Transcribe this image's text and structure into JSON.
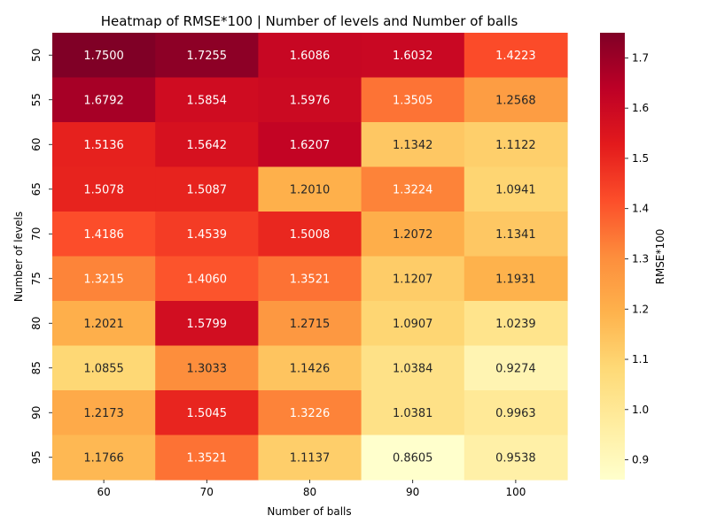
{
  "chart_data": {
    "type": "heatmap",
    "title": "Heatmap of RMSE*100 | Number of levels and Number of balls",
    "xlabel": "Number of balls",
    "ylabel": "Number of levels",
    "x_categories": [
      "60",
      "70",
      "80",
      "90",
      "100"
    ],
    "y_categories": [
      "50",
      "55",
      "60",
      "65",
      "70",
      "75",
      "80",
      "85",
      "90",
      "95"
    ],
    "values": [
      [
        1.75,
        1.7255,
        1.6086,
        1.6032,
        1.4223
      ],
      [
        1.6792,
        1.5854,
        1.5976,
        1.3505,
        1.2568
      ],
      [
        1.5136,
        1.5642,
        1.6207,
        1.1342,
        1.1122
      ],
      [
        1.5078,
        1.5087,
        1.201,
        1.3224,
        1.0941
      ],
      [
        1.4186,
        1.4539,
        1.5008,
        1.2072,
        1.1341
      ],
      [
        1.3215,
        1.406,
        1.3521,
        1.1207,
        1.1931
      ],
      [
        1.2021,
        1.5799,
        1.2715,
        1.0907,
        1.0239
      ],
      [
        1.0855,
        1.3033,
        1.1426,
        1.0384,
        0.9274
      ],
      [
        1.2173,
        1.5045,
        1.3226,
        1.0381,
        0.9963
      ],
      [
        1.1766,
        1.3521,
        1.1137,
        0.8605,
        0.9538
      ]
    ],
    "colorbar": {
      "label": "RMSE*100",
      "colormap": "YlOrRd",
      "vmin": 0.8605,
      "vmax": 1.75,
      "ticks": [
        "0.9",
        "1.0",
        "1.1",
        "1.2",
        "1.3",
        "1.4",
        "1.5",
        "1.6",
        "1.7"
      ]
    }
  }
}
